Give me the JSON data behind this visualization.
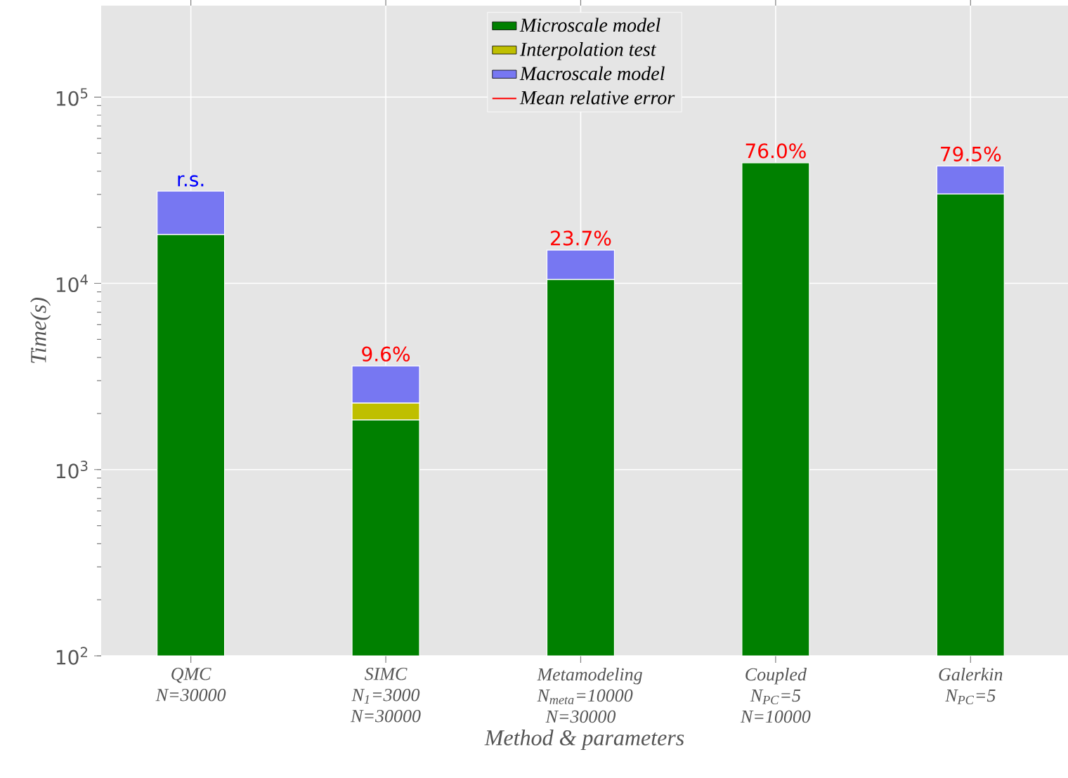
{
  "chart_data": {
    "type": "bar",
    "stacked": true,
    "xlabel": "Method & parameters",
    "ylabel": "Time(s)",
    "categories": [
      "QMC N=30000",
      "SIMC N$_{1}$=3000 N=30000",
      "Metamodeling N$_{meta}$=10000 N=30000",
      "Coupled N$_{PC}$=5 N=10000",
      "Galerkin N$_{PC}$=5"
    ],
    "series": [
      {
        "name": "Microscale model",
        "color": "#008000",
        "values": [
          18300,
          1850,
          10500,
          44400,
          30200
        ]
      },
      {
        "name": "Interpolation test",
        "color": "#bfbf00",
        "values": [
          null,
          430,
          null,
          null,
          null
        ]
      },
      {
        "name": "Macroscale model",
        "color": "#7777f2",
        "values": [
          13000,
          1320,
          4600,
          null,
          12500
        ]
      },
      {
        "name": "Mean relative error",
        "type": "line",
        "color": "#ff0000",
        "values": [
          null,
          null,
          null,
          null,
          null
        ],
        "value_labels": [
          null,
          "9.6%",
          "23.7%",
          "76.0%",
          "79.5%"
        ]
      }
    ],
    "log": "y",
    "ylim": [
      100,
      310000
    ],
    "yticks": [
      {
        "value": 100,
        "label": "10$^{2}$"
      },
      {
        "value": 1000,
        "label": "10$^{3}$"
      },
      {
        "value": 10000,
        "label": "10$^{4}$"
      },
      {
        "value": 100000,
        "label": "10$^{5}$"
      }
    ],
    "grid": true,
    "legend": "top",
    "annotations": [
      {
        "text": "r.s.",
        "x": "QMC N=30000",
        "y": 31300
      }
    ]
  }
}
